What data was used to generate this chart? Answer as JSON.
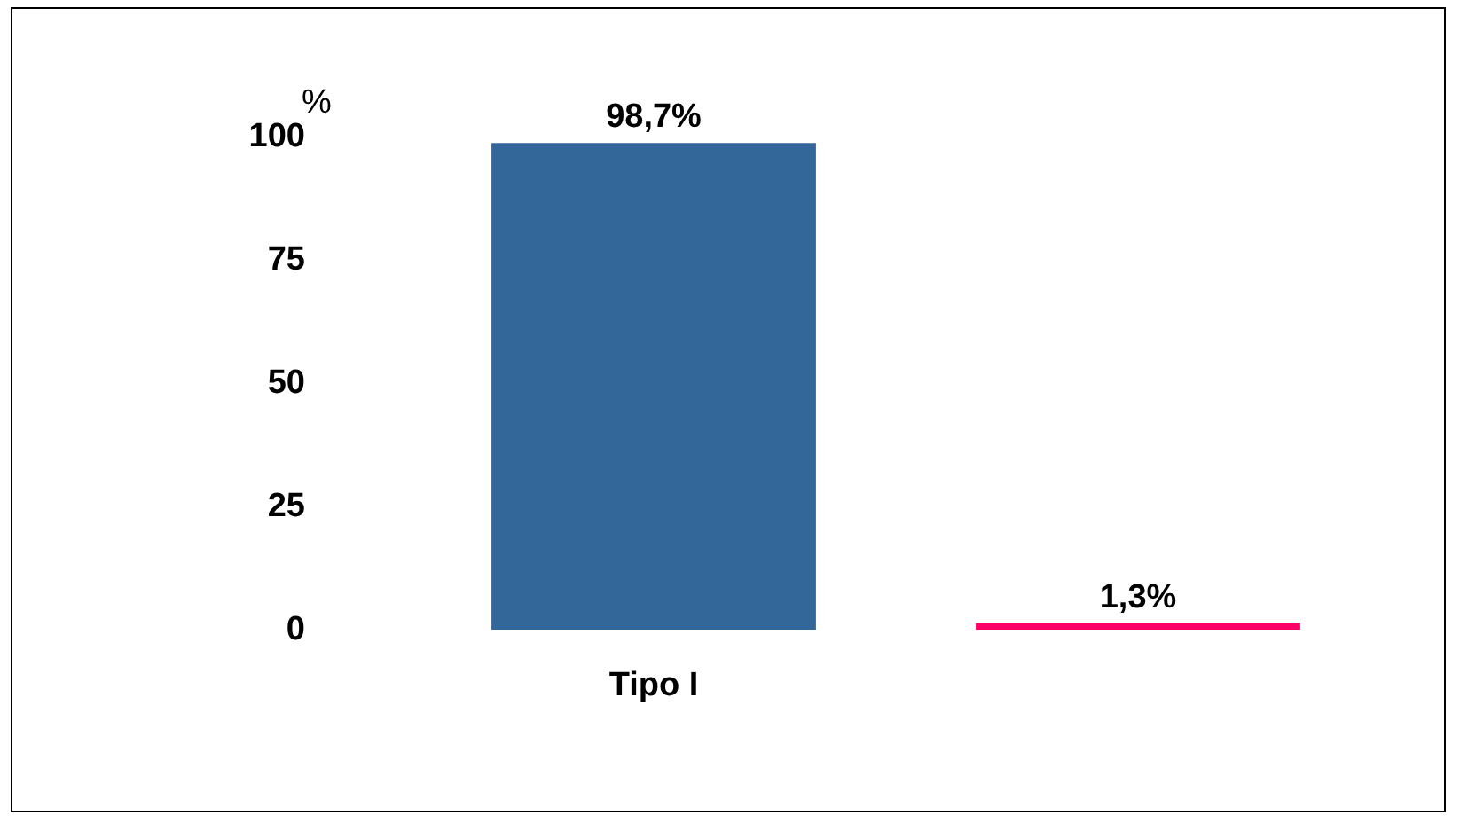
{
  "chart_data": {
    "type": "bar",
    "ylabel": "%",
    "categories": [
      "Tipo I",
      null
    ],
    "values": [
      98.7,
      1.3
    ],
    "colors": [
      "#336699",
      "#ff0066"
    ],
    "value_labels": [
      "98,7%",
      "1,3%"
    ],
    "ylim": [
      0,
      100
    ],
    "yticks": [
      0,
      25,
      50,
      75,
      100
    ],
    "grid": false
  }
}
